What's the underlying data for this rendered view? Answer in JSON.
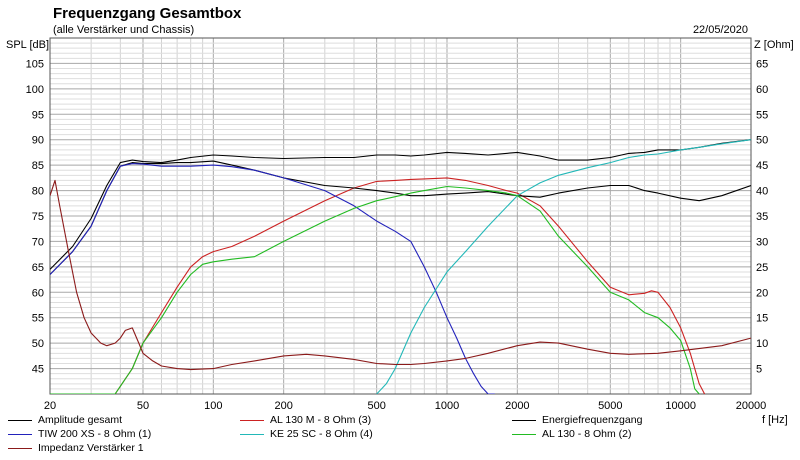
{
  "title": "Frequenzgang Gesamtbox",
  "subtitle": "(alle Verstärker und Chassis)",
  "date": "22/05/2020",
  "chart_data": {
    "type": "line",
    "xlabel": "f [Hz]",
    "ylabel_left": "SPL [dB]",
    "ylabel_right": "Z [Ohm]",
    "xscale": "log",
    "xlim": [
      20,
      20000
    ],
    "ylim_left": [
      40,
      110
    ],
    "ylim_right": [
      0,
      70
    ],
    "grid": true,
    "legend_position": "bottom",
    "x_ticks": [
      "20",
      "50",
      "100",
      "200",
      "500",
      "1000",
      "2000",
      "5000",
      "10000",
      "20000"
    ],
    "y_ticks_left": [
      "45",
      "50",
      "55",
      "60",
      "65",
      "70",
      "75",
      "80",
      "85",
      "90",
      "95",
      "100",
      "105"
    ],
    "y_ticks_right": [
      "5",
      "10",
      "15",
      "20",
      "25",
      "30",
      "35",
      "40",
      "45",
      "50",
      "55",
      "60",
      "65"
    ],
    "series": [
      {
        "name": "Amplitude gesamt",
        "color": "#000000",
        "axis": "left",
        "x": [
          20,
          25,
          30,
          35,
          40,
          45,
          50,
          60,
          70,
          80,
          100,
          120,
          150,
          200,
          300,
          400,
          500,
          600,
          700,
          800,
          1000,
          1200,
          1500,
          2000,
          2500,
          3000,
          4000,
          5000,
          6000,
          7000,
          8000,
          10000,
          12000,
          15000,
          20000
        ],
        "y": [
          64.5,
          69,
          74.5,
          81,
          85.5,
          86,
          85.7,
          85.5,
          86,
          86.5,
          87,
          86.8,
          86.5,
          86.3,
          86.5,
          86.5,
          87,
          87,
          86.8,
          87,
          87.5,
          87.3,
          87,
          87.5,
          86.8,
          86,
          86,
          86.5,
          87.3,
          87.5,
          88,
          88,
          88.5,
          89.3,
          90
        ]
      },
      {
        "name": "AL 130 M - 8 Ohm (3)",
        "color": "#cc2222",
        "axis": "left",
        "x": [
          20,
          30,
          38,
          45,
          50,
          60,
          70,
          80,
          90,
          100,
          120,
          150,
          200,
          300,
          400,
          500,
          600,
          700,
          800,
          1000,
          1200,
          1500,
          1800,
          2000,
          2500,
          3000,
          4000,
          5000,
          6000,
          7000,
          7500,
          8000,
          9000,
          10000,
          11000,
          12000,
          13000
        ],
        "y": [
          40,
          40,
          40,
          45,
          50,
          56,
          61,
          65,
          67,
          68,
          69,
          71,
          74,
          78,
          80.5,
          81.8,
          82,
          82.2,
          82.3,
          82.5,
          82,
          81,
          80,
          79.5,
          77,
          73,
          66,
          61,
          59.5,
          59.8,
          60.3,
          60,
          57,
          53,
          48,
          42,
          39
        ]
      },
      {
        "name": "Energiefrequenzgang",
        "color": "#000000",
        "axis": "left",
        "x": [
          20,
          25,
          30,
          35,
          40,
          45,
          50,
          60,
          70,
          80,
          100,
          120,
          150,
          200,
          300,
          400,
          500,
          600,
          700,
          800,
          1000,
          1200,
          1500,
          2000,
          2500,
          3000,
          4000,
          5000,
          6000,
          7000,
          8000,
          10000,
          12000,
          15000,
          20000
        ],
        "y": [
          63.5,
          68,
          73,
          80,
          84.8,
          85.5,
          85.3,
          85.3,
          85.5,
          85.5,
          85.8,
          85,
          84,
          82.5,
          81,
          80.5,
          80,
          79.5,
          79,
          79,
          79.3,
          79.5,
          79.8,
          79,
          78.7,
          79.5,
          80.5,
          81,
          81,
          80,
          79.5,
          78.5,
          78,
          79,
          81
        ]
      },
      {
        "name": "TIW 200 XS - 8 Ohm (1)",
        "color": "#2222bb",
        "axis": "left",
        "x": [
          20,
          25,
          30,
          35,
          40,
          45,
          50,
          60,
          70,
          80,
          100,
          120,
          150,
          200,
          300,
          400,
          500,
          600,
          700,
          800,
          900,
          1000,
          1100,
          1200,
          1300,
          1400,
          1500,
          1600
        ],
        "y": [
          63.5,
          68,
          73,
          80,
          84.8,
          85.3,
          85.2,
          84.8,
          84.8,
          84.8,
          85,
          84.7,
          84,
          82.5,
          80,
          77,
          74,
          72,
          70,
          65,
          60,
          55,
          51,
          47,
          44,
          41.5,
          40,
          40
        ]
      },
      {
        "name": "KE 25 SC - 8 Ohm    (4)",
        "color": "#22b8b8",
        "axis": "left",
        "x": [
          500,
          550,
          600,
          700,
          800,
          1000,
          1200,
          1500,
          2000,
          2500,
          3000,
          4000,
          5000,
          6000,
          7000,
          8000,
          10000,
          12000,
          15000,
          20000
        ],
        "y": [
          40,
          42,
          45,
          52,
          57,
          64,
          68,
          73,
          79,
          81.5,
          83,
          84.5,
          85.5,
          86.5,
          87,
          87.2,
          88,
          88.5,
          89.2,
          90
        ]
      },
      {
        "name": "AL 130 - 8 Ohm (2)",
        "color": "#22bb22",
        "axis": "left",
        "x": [
          20,
          30,
          38,
          45,
          50,
          60,
          70,
          80,
          90,
          100,
          120,
          150,
          200,
          300,
          400,
          500,
          600,
          700,
          800,
          1000,
          1200,
          1500,
          1800,
          2000,
          2500,
          3000,
          4000,
          5000,
          6000,
          7000,
          8000,
          9000,
          10000,
          11000,
          11500,
          12000
        ],
        "y": [
          40,
          40,
          40,
          45,
          50,
          55,
          60,
          63.5,
          65.5,
          66,
          66.5,
          67,
          70,
          74,
          76.5,
          78,
          78.8,
          79.5,
          80,
          80.8,
          80.5,
          80,
          79.5,
          79,
          76,
          71,
          65,
          60,
          58.5,
          56,
          55,
          53,
          50.5,
          45,
          41,
          40
        ]
      },
      {
        "name": "Impedanz Verstärker 1",
        "color": "#8b1a1a",
        "axis": "right",
        "x": [
          20,
          21,
          22,
          24,
          26,
          28,
          30,
          33,
          35,
          38,
          40,
          42,
          45,
          48,
          50,
          55,
          60,
          70,
          80,
          100,
          120,
          150,
          200,
          250,
          300,
          400,
          500,
          600,
          700,
          800,
          1000,
          1200,
          1500,
          2000,
          2500,
          3000,
          4000,
          5000,
          6000,
          8000,
          10000,
          15000,
          20000
        ],
        "y": [
          39,
          42,
          37,
          28,
          20,
          15,
          12,
          10,
          9.5,
          10,
          11,
          12.5,
          13,
          10,
          8,
          6.5,
          5.5,
          5,
          4.8,
          5,
          5.8,
          6.5,
          7.5,
          7.8,
          7.5,
          6.8,
          6,
          5.8,
          5.8,
          6,
          6.5,
          7,
          8,
          9.5,
          10.2,
          10,
          8.8,
          8,
          7.8,
          8,
          8.5,
          9.5,
          11
        ]
      }
    ]
  }
}
